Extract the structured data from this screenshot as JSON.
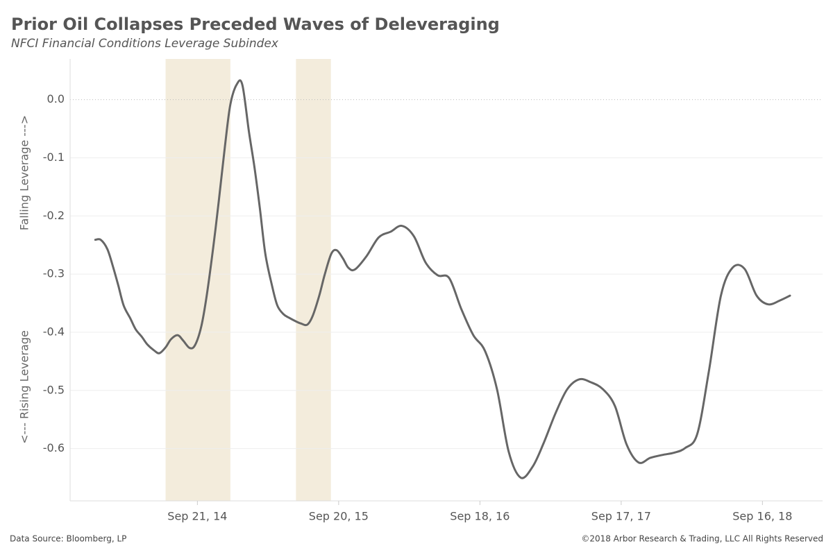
{
  "chart_data": {
    "type": "line",
    "title": "Prior Oil Collapses Preceded Waves of Deleveraging",
    "subtitle": "NFCI Financial Conditions Leverage Subindex",
    "y_label_top": "Falling Leverage --->",
    "y_label_bottom": "<--- Rising Leverage",
    "source": "Data Source: Bloomberg, LP",
    "copyright": "©2018 Arbor Research & Trading, LLC   All Rights Reserved",
    "color": "#666666",
    "shade_color": "#f3ecdc",
    "shaded_ranges": [
      {
        "start": "2014-07-01",
        "end": "2014-12-15"
      },
      {
        "start": "2015-06-02",
        "end": "2015-08-31"
      }
    ],
    "x": [
      "2014-01-01",
      "2014-01-15",
      "2014-02-01",
      "2014-02-15",
      "2014-03-01",
      "2014-03-15",
      "2014-04-01",
      "2014-04-15",
      "2014-05-01",
      "2014-05-15",
      "2014-06-01",
      "2014-06-15",
      "2014-07-01",
      "2014-07-15",
      "2014-08-01",
      "2014-08-15",
      "2014-09-01",
      "2014-09-15",
      "2014-10-01",
      "2014-10-15",
      "2014-11-01",
      "2014-11-15",
      "2014-12-01",
      "2014-12-15",
      "2015-01-01",
      "2015-01-15",
      "2015-02-01",
      "2015-02-15",
      "2015-03-01",
      "2015-03-15",
      "2015-04-01",
      "2015-04-15",
      "2015-05-01",
      "2015-05-15",
      "2015-06-01",
      "2015-06-15",
      "2015-07-01",
      "2015-07-15",
      "2015-08-01",
      "2015-08-15",
      "2015-09-01",
      "2015-09-15",
      "2015-10-01",
      "2015-10-15",
      "2015-11-01",
      "2015-12-01",
      "2016-01-01",
      "2016-02-01",
      "2016-03-01",
      "2016-04-01",
      "2016-05-01",
      "2016-06-01",
      "2016-07-01",
      "2016-08-01",
      "2016-09-01",
      "2016-10-01",
      "2016-11-01",
      "2016-12-01",
      "2017-01-01",
      "2017-02-01",
      "2017-03-01",
      "2017-04-01",
      "2017-05-01",
      "2017-06-01",
      "2017-07-01",
      "2017-08-01",
      "2017-09-01",
      "2017-10-01",
      "2017-11-01",
      "2017-12-01",
      "2018-01-01",
      "2018-02-01",
      "2018-03-01",
      "2018-04-01",
      "2018-05-01",
      "2018-06-01",
      "2018-07-01",
      "2018-08-01",
      "2018-09-01",
      "2018-10-01",
      "2018-11-01",
      "2018-11-26"
    ],
    "values": [
      -0.241,
      -0.241,
      -0.257,
      -0.286,
      -0.319,
      -0.354,
      -0.376,
      -0.395,
      -0.408,
      -0.421,
      -0.431,
      -0.436,
      -0.426,
      -0.412,
      -0.405,
      -0.414,
      -0.427,
      -0.422,
      -0.39,
      -0.337,
      -0.253,
      -0.175,
      -0.08,
      -0.008,
      0.027,
      0.025,
      -0.056,
      -0.116,
      -0.187,
      -0.265,
      -0.319,
      -0.354,
      -0.369,
      -0.375,
      -0.381,
      -0.385,
      -0.387,
      -0.372,
      -0.337,
      -0.301,
      -0.265,
      -0.259,
      -0.273,
      -0.289,
      -0.292,
      -0.269,
      -0.237,
      -0.227,
      -0.217,
      -0.235,
      -0.28,
      -0.302,
      -0.307,
      -0.36,
      -0.405,
      -0.432,
      -0.498,
      -0.605,
      -0.65,
      -0.631,
      -0.591,
      -0.539,
      -0.498,
      -0.481,
      -0.486,
      -0.498,
      -0.527,
      -0.593,
      -0.624,
      -0.616,
      -0.611,
      -0.607,
      -0.599,
      -0.575,
      -0.467,
      -0.337,
      -0.289,
      -0.291,
      -0.337,
      -0.352,
      -0.345,
      -0.337
    ],
    "xlim": [
      "2013-10-28",
      "2019-02-18"
    ],
    "xticks": [
      {
        "value": "2014-09-21",
        "label": "Sep 21, 14"
      },
      {
        "value": "2015-09-20",
        "label": "Sep 20, 15"
      },
      {
        "value": "2016-09-18",
        "label": "Sep 18, 16"
      },
      {
        "value": "2017-09-17",
        "label": "Sep 17, 17"
      },
      {
        "value": "2018-09-16",
        "label": "Sep 16, 18"
      }
    ],
    "ylim": [
      -0.69,
      0.07
    ],
    "yticks": [
      {
        "value": 0,
        "label": "0.0"
      },
      -0.1,
      -0.2,
      -0.3,
      -0.4,
      -0.5,
      -0.6
    ],
    "grid": true
  }
}
